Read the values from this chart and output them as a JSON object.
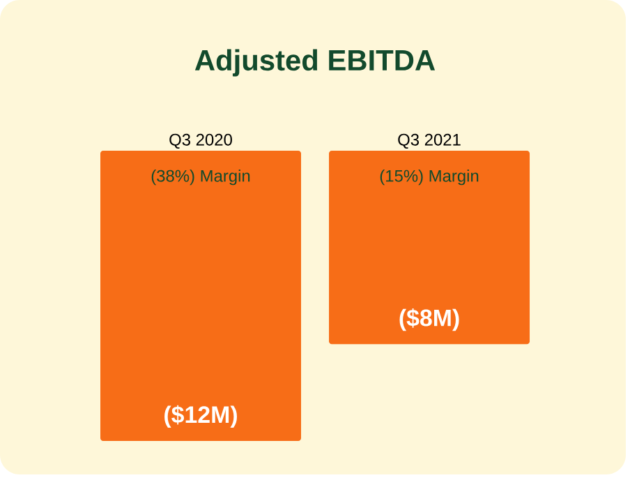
{
  "chart_data": {
    "type": "bar",
    "title": "Adjusted EBITDA",
    "categories": [
      "Q3 2020",
      "Q3 2021"
    ],
    "values": [
      -12,
      -8
    ],
    "value_labels": [
      "($12M)",
      "($8M)"
    ],
    "color": "#f76d17",
    "tick_labels": "x",
    "annotations": [
      {
        "text": "(38%) Margin",
        "x": "Q3 2020",
        "y": 0
      },
      {
        "text": "(15%) Margin",
        "x": "Q3 2021",
        "y": 0
      }
    ]
  }
}
